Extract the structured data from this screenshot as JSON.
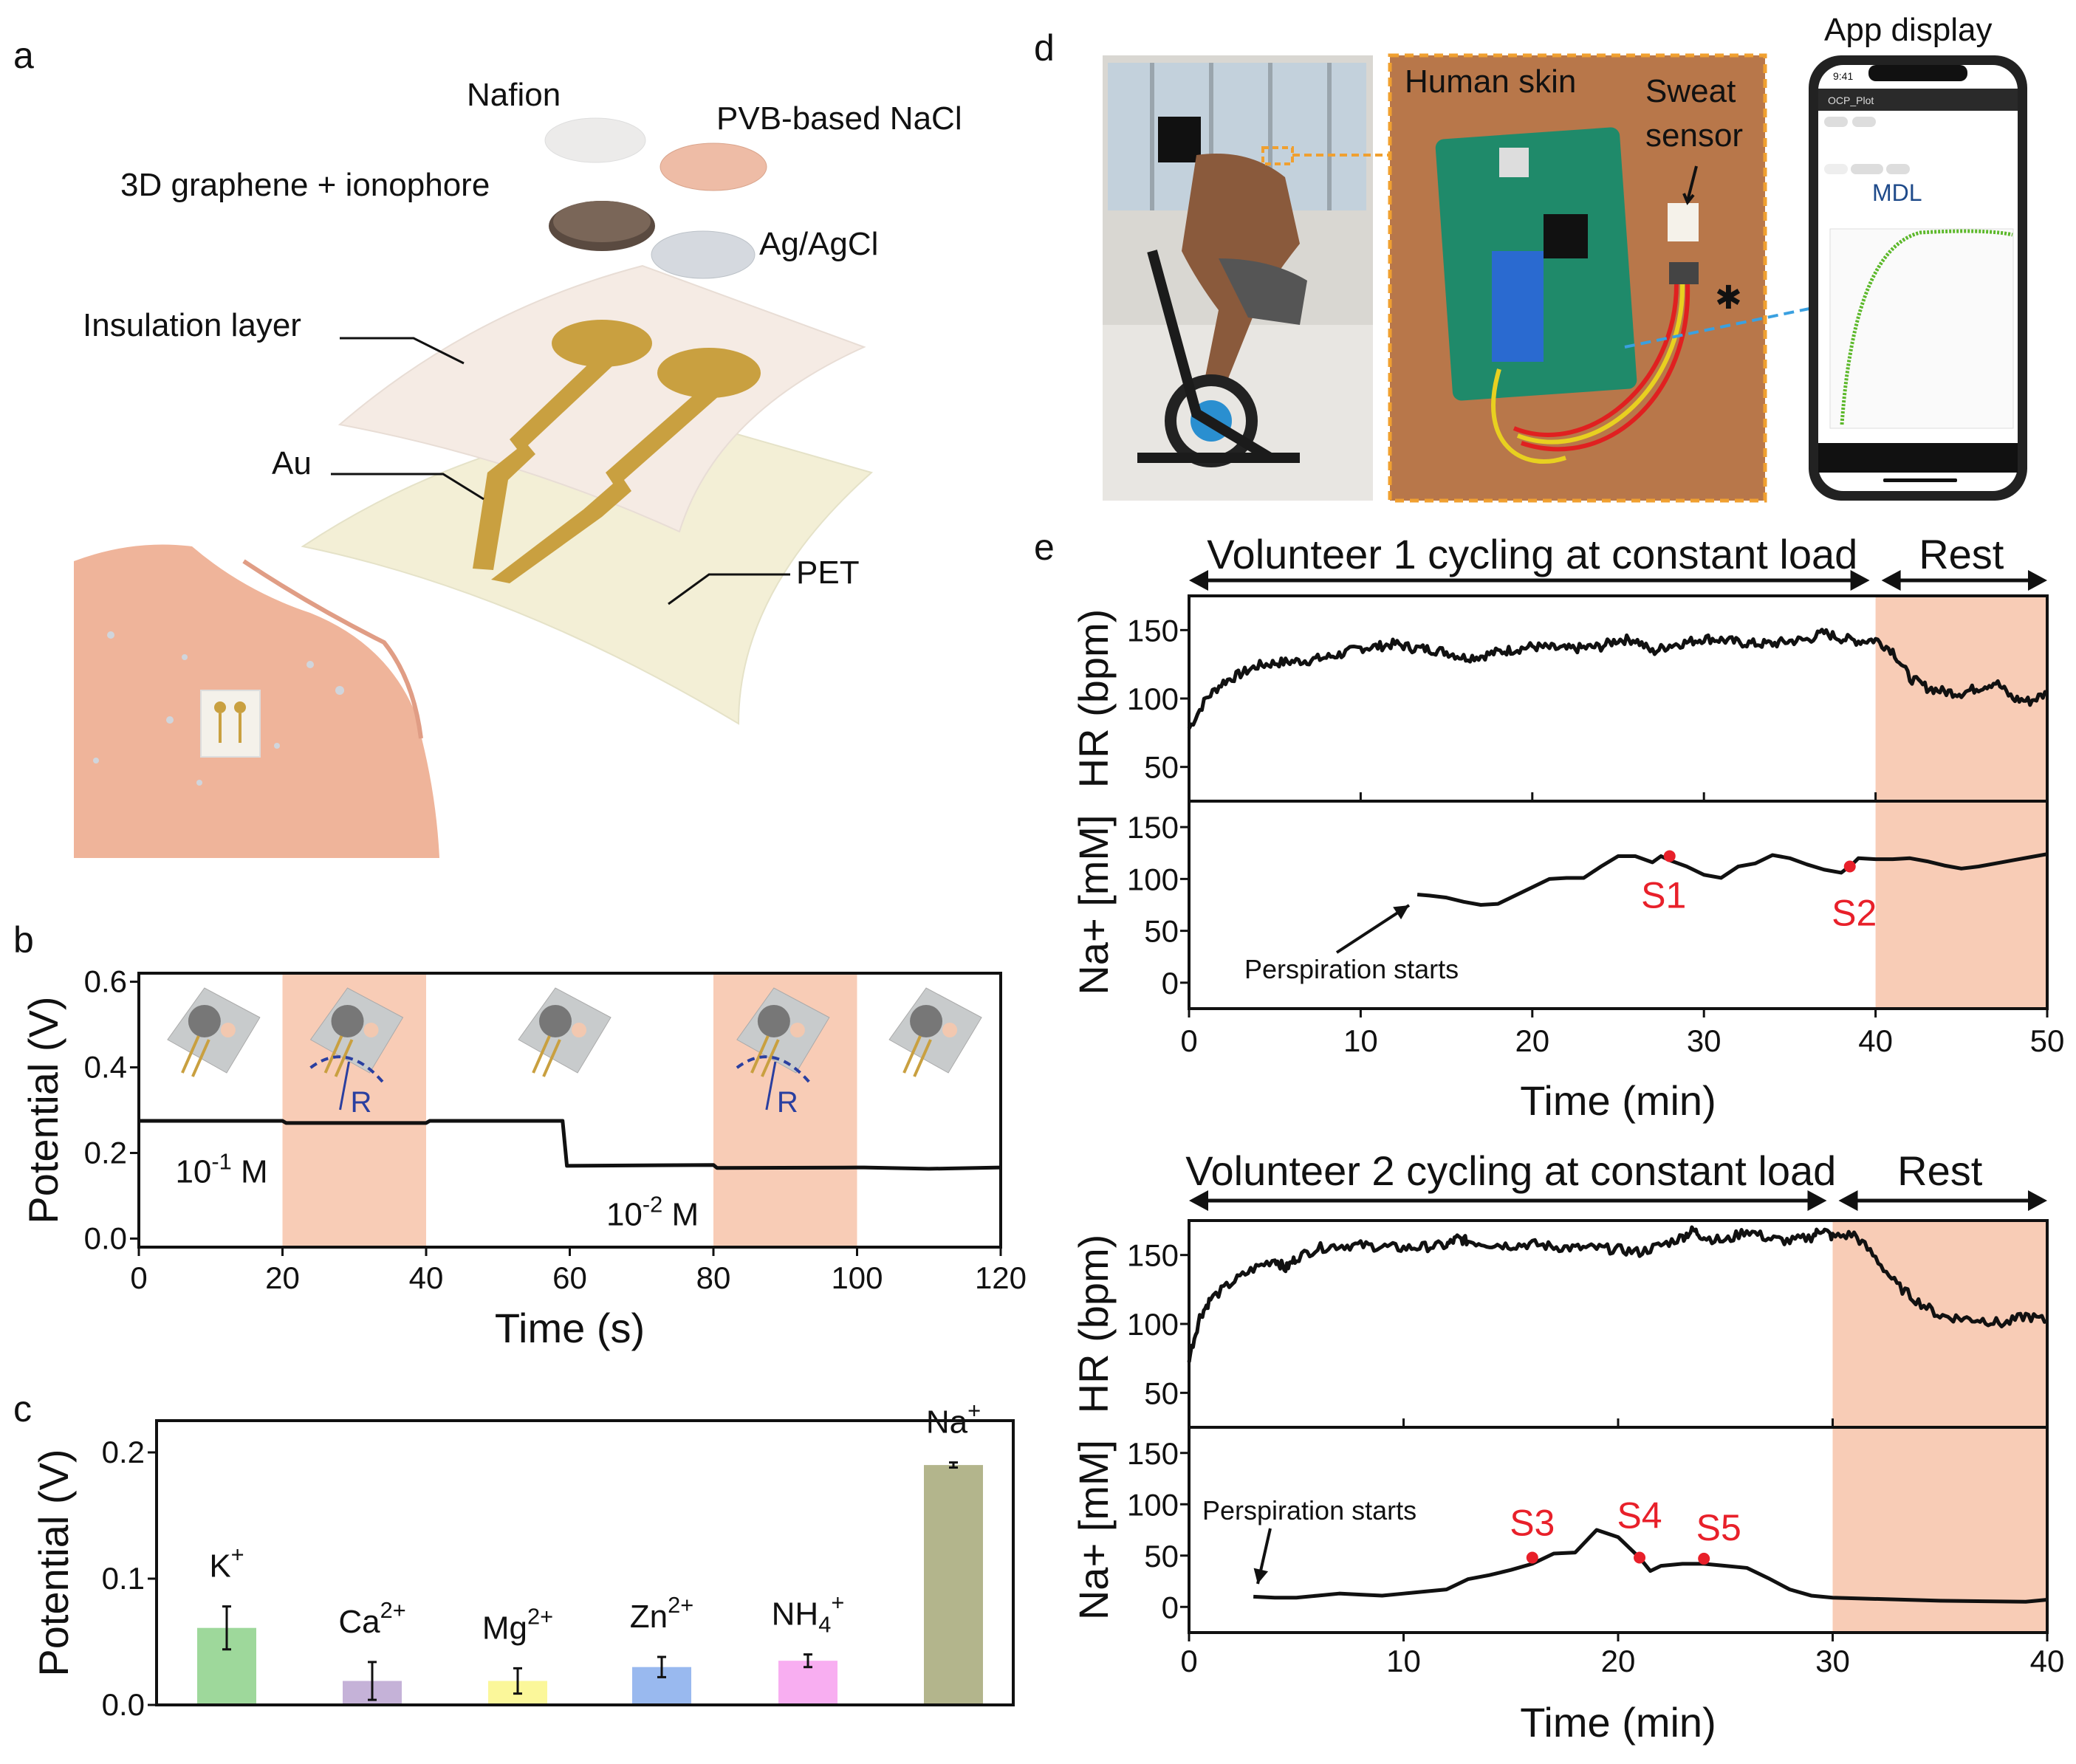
{
  "panels": {
    "a": "a",
    "b": "b",
    "c": "c",
    "d": "d",
    "e": "e"
  },
  "panel_a": {
    "labels": {
      "nafion": "Nafion",
      "pvb": "PVB-based NaCl",
      "graphene": "3D graphene  + ionophore",
      "agagcl": "Ag/AgCl",
      "insulation": "Insulation layer",
      "au": "Au",
      "pet": "PET"
    }
  },
  "panel_d": {
    "human_skin": "Human skin",
    "sweat_sensor_line1": "Sweat",
    "sweat_sensor_line2": "sensor",
    "app_display": "App display",
    "phone": {
      "time": "9:41",
      "app_title": "OCP_Plot",
      "logo": "MDL"
    },
    "colors": {
      "skin_bg": "#b8774a",
      "pcb": "#1f8a6a",
      "dashed_border": "#f0a030",
      "link_line": "#3aa0e0",
      "app_curve": "#5cb82a"
    }
  },
  "panel_e": {
    "v1_cycling": "Volunteer 1 cycling at constant load",
    "v1_rest": "Rest",
    "v2_cycling": "Volunteer 2 cycling at constant load",
    "v2_rest": "Rest",
    "perspiration_1": "Perspiration starts",
    "perspiration_2": "Perspiration starts"
  },
  "colors": {
    "shade": "#f8ccb6",
    "line": "#111111",
    "marker": "#e8202a"
  },
  "chart_data": [
    {
      "id": "b",
      "type": "line",
      "xlabel": "Time (s)",
      "ylabel": "Potential (V)",
      "xlim": [
        0,
        120
      ],
      "ylim": [
        -0.02,
        0.62
      ],
      "xticks": [
        0,
        20,
        40,
        60,
        80,
        100,
        120
      ],
      "yticks": [
        "0.0",
        "0.2",
        "0.4",
        "0.6"
      ],
      "shaded_x": [
        [
          20,
          40
        ],
        [
          80,
          100
        ]
      ],
      "annotations": [
        {
          "text": "10",
          "sup": "-1",
          "tail": " M",
          "x": 2,
          "y": 0.2
        },
        {
          "text": "10",
          "sup": "-2",
          "tail": " M",
          "x": 62,
          "y": 0.1
        }
      ],
      "bend_label": "R",
      "series": [
        {
          "x": [
            0,
            20,
            20.5,
            40,
            40.5,
            59,
            59.6,
            80,
            80.5,
            100,
            101,
            110,
            120
          ],
          "y": [
            0.275,
            0.275,
            0.27,
            0.27,
            0.275,
            0.275,
            0.17,
            0.172,
            0.165,
            0.166,
            0.166,
            0.163,
            0.166
          ]
        }
      ]
    },
    {
      "id": "c",
      "type": "bar",
      "ylabel": "Potential (V)",
      "ylim": [
        0,
        0.225
      ],
      "yticks": [
        "0.0",
        "0.1",
        "0.2"
      ],
      "categories": [
        {
          "base": "K",
          "sub": "",
          "sup": "+"
        },
        {
          "base": "Ca",
          "sub": "",
          "sup": "2+"
        },
        {
          "base": "Mg",
          "sub": "",
          "sup": "2+"
        },
        {
          "base": "Zn",
          "sub": "",
          "sup": "2+"
        },
        {
          "base": "NH",
          "sub": "4",
          "sup": "+"
        },
        {
          "base": "Na",
          "sub": "",
          "sup": "+"
        }
      ],
      "values": [
        0.061,
        0.019,
        0.019,
        0.03,
        0.035,
        0.19
      ],
      "errors": [
        0.017,
        0.015,
        0.01,
        0.008,
        0.005,
        0.002
      ],
      "bar_colors": [
        "#9ed89b",
        "#c5b2d8",
        "#fbf79a",
        "#99b9ef",
        "#f8aef1",
        "#b3b58c"
      ]
    },
    {
      "id": "e1",
      "type": "line",
      "xlabel": "Time (min)",
      "xlim": [
        0,
        50
      ],
      "xticks": [
        0,
        10,
        20,
        30,
        40,
        50
      ],
      "shaded_x": [
        [
          40,
          50
        ]
      ],
      "hr": {
        "ylabel": "HR (bpm)",
        "ylim": [
          25,
          175
        ],
        "yticks": [
          50,
          100,
          150
        ],
        "x": [
          0,
          1,
          2,
          3,
          4,
          5,
          6,
          7,
          8,
          9,
          10,
          11,
          12,
          13,
          14,
          15,
          16,
          17,
          18,
          19,
          20,
          21,
          22,
          23,
          24,
          25,
          26,
          27,
          28,
          29,
          30,
          31,
          32,
          33,
          34,
          35,
          36,
          37,
          38,
          39,
          40,
          41,
          42,
          43,
          44,
          45,
          46,
          47,
          48,
          49,
          50
        ],
        "y": [
          78,
          100,
          112,
          118,
          124,
          126,
          127,
          128,
          130,
          133,
          137,
          138,
          140,
          137,
          136,
          134,
          130,
          131,
          134,
          136,
          138,
          137,
          136,
          137,
          138,
          143,
          143,
          134,
          139,
          141,
          144,
          143,
          141,
          140,
          140,
          142,
          143,
          148,
          144,
          142,
          143,
          135,
          115,
          108,
          105,
          104,
          108,
          112,
          100,
          98,
          104
        ]
      },
      "na": {
        "ylabel": "Na+ [mM]",
        "ylim": [
          -25,
          175
        ],
        "yticks": [
          0,
          50,
          100,
          150
        ],
        "x": [
          13.3,
          14,
          15,
          16,
          17,
          18,
          19,
          20,
          21,
          22,
          23,
          24,
          25,
          26,
          27,
          27.5,
          28,
          29,
          30,
          31,
          32,
          33,
          34,
          35,
          36,
          37,
          38,
          38.7,
          39,
          40,
          41,
          42,
          43,
          44,
          45,
          46,
          47,
          48,
          49,
          50
        ],
        "y": [
          85,
          84,
          82,
          78,
          75,
          76,
          84,
          92,
          100,
          101,
          101,
          112,
          122,
          122,
          116,
          122,
          118,
          112,
          104,
          101,
          112,
          115,
          123,
          120,
          114,
          109,
          106,
          115,
          120,
          119,
          119,
          120,
          117,
          113,
          110,
          112,
          115,
          118,
          121,
          124
        ]
      },
      "markers": [
        {
          "label": "S1",
          "x": 28,
          "y": 122
        },
        {
          "label": "S2",
          "x": 38.5,
          "y": 112
        }
      ]
    },
    {
      "id": "e2",
      "type": "line",
      "xlabel": "Time (min)",
      "xlim": [
        0,
        40
      ],
      "xticks": [
        0,
        10,
        20,
        30,
        40
      ],
      "shaded_x": [
        [
          30,
          40
        ]
      ],
      "hr": {
        "ylabel": "HR (bpm)",
        "ylim": [
          25,
          175
        ],
        "yticks": [
          50,
          100,
          150
        ],
        "x": [
          0,
          0.5,
          1,
          2,
          3,
          4,
          4.5,
          5,
          6,
          7,
          8,
          9,
          10,
          11,
          12,
          12.5,
          13,
          14,
          15,
          16,
          17,
          18,
          19,
          20,
          21,
          22,
          23,
          23.5,
          24,
          25,
          26,
          27,
          28,
          29,
          29.5,
          30,
          31,
          32,
          33,
          34,
          35,
          36,
          37,
          38,
          39,
          40
        ],
        "y": [
          75,
          105,
          118,
          130,
          140,
          147,
          140,
          148,
          155,
          157,
          157,
          156,
          155,
          156,
          157,
          162,
          160,
          158,
          157,
          158,
          156,
          155,
          155,
          154,
          152,
          157,
          163,
          168,
          163,
          160,
          168,
          162,
          160,
          163,
          169,
          163,
          165,
          148,
          128,
          116,
          106,
          104,
          103,
          100,
          106,
          102
        ]
      },
      "na": {
        "ylabel": "Na+ [mM]",
        "ylim": [
          -25,
          175
        ],
        "yticks": [
          0,
          50,
          100,
          150
        ],
        "x": [
          3,
          4,
          5,
          6,
          7,
          8,
          9,
          10,
          11,
          12,
          13,
          14,
          15,
          16,
          17,
          18,
          19,
          20,
          21,
          21.5,
          22,
          23,
          24,
          25,
          26,
          27,
          28,
          29,
          30,
          35,
          39,
          40
        ],
        "y": [
          10,
          9,
          9,
          11,
          13,
          12,
          11,
          13,
          15,
          17,
          27,
          31,
          36,
          42,
          52,
          53,
          75,
          68,
          48,
          35,
          40,
          42,
          42,
          40,
          38,
          28,
          17,
          11,
          9,
          6,
          5,
          7
        ]
      },
      "markers": [
        {
          "label": "S3",
          "x": 16,
          "y": 48
        },
        {
          "label": "S4",
          "x": 21,
          "y": 48
        },
        {
          "label": "S5",
          "x": 24,
          "y": 47
        }
      ]
    }
  ]
}
